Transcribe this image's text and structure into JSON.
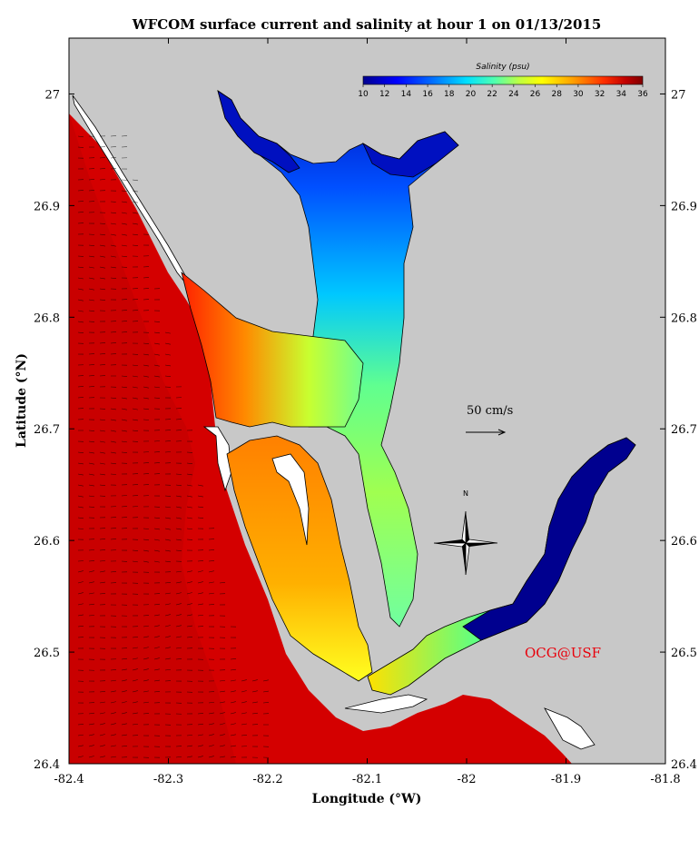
{
  "title": "WFCOM surface current and salinity at hour 1 on 01/13/2015",
  "xlabel": "Longitude (°W)",
  "ylabel": "Latitude (°N)",
  "x_ticks": [
    "-82.4",
    "-82.3",
    "-82.2",
    "-82.1",
    "-82",
    "-81.9",
    "-81.8"
  ],
  "y_ticks": [
    "27",
    "26.9",
    "26.8",
    "26.7",
    "26.6",
    "26.5",
    "26.4"
  ],
  "x_range": [
    -82.4,
    -81.8
  ],
  "y_range": [
    26.4,
    27.05
  ],
  "colorbar": {
    "title": "Salinity (psu)",
    "ticks": [
      "10",
      "12",
      "14",
      "16",
      "18",
      "20",
      "22",
      "24",
      "26",
      "28",
      "30",
      "32",
      "34",
      "36"
    ],
    "range": [
      10,
      36
    ],
    "colors": [
      "#00008f",
      "#0000ff",
      "#0070ff",
      "#00e0ff",
      "#50ffaf",
      "#c0ff40",
      "#ffff00",
      "#ffa000",
      "#ff3000",
      "#c00000",
      "#800000"
    ]
  },
  "scale_vector": {
    "label": "50 cm/s"
  },
  "compass": {
    "north_label": "N"
  },
  "credit": "OCG@USF",
  "colors": {
    "land": "#c8c8c8",
    "gulf": "#d40000",
    "axes": "#000000",
    "credit": "#e8000b"
  }
}
